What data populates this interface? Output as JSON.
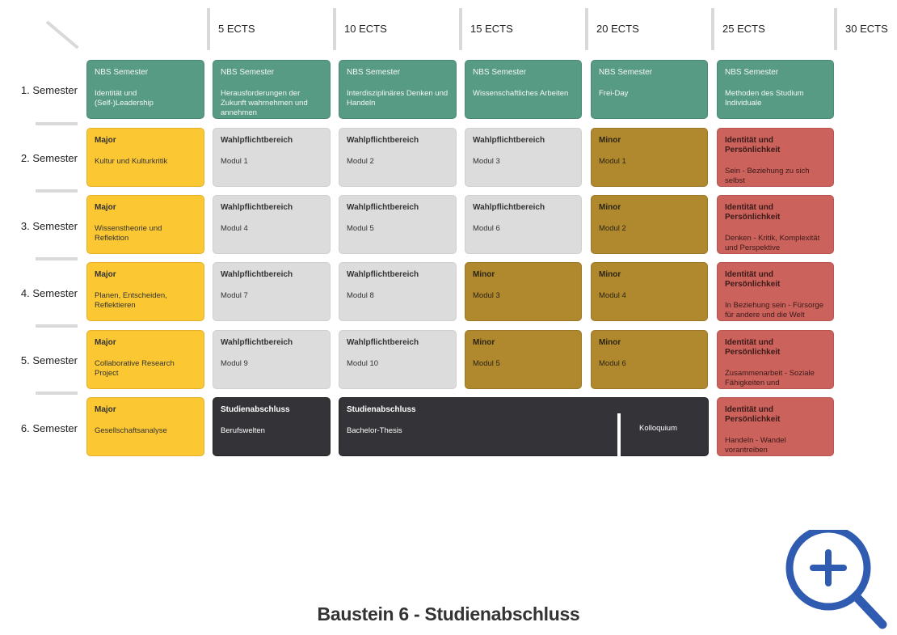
{
  "header": {
    "ects": [
      "5 ECTS",
      "10 ECTS",
      "15 ECTS",
      "20 ECTS",
      "25 ECTS",
      "30 ECTS"
    ]
  },
  "rows": [
    {
      "label": "1. Semester",
      "cells": [
        {
          "color": "green",
          "title": "NBS Semester",
          "sub": "Identität und (Self-)Leadership"
        },
        {
          "color": "green",
          "title": "NBS Semester",
          "sub": "Herausforderungen der Zukunft wahrnehmen und annehmen"
        },
        {
          "color": "green",
          "title": "NBS Semester",
          "sub": "Interdisziplinäres Denken und Handeln"
        },
        {
          "color": "green",
          "title": "NBS Semester",
          "sub": "Wissenschaftliches Arbeiten"
        },
        {
          "color": "green",
          "title": "NBS Semester",
          "sub": "Frei-Day"
        },
        {
          "color": "green",
          "title": "NBS Semester",
          "sub": "Methoden des Studium Individuale"
        }
      ]
    },
    {
      "label": "2. Semester",
      "cells": [
        {
          "color": "yellow",
          "title": "Major",
          "sub": "Kultur und Kulturkritik"
        },
        {
          "color": "grey",
          "title": "Wahlpflichtbereich",
          "sub": "Modul 1"
        },
        {
          "color": "grey",
          "title": "Wahlpflichtbereich",
          "sub": "Modul 2"
        },
        {
          "color": "grey",
          "title": "Wahlpflichtbereich",
          "sub": "Modul 3"
        },
        {
          "color": "brown",
          "title": "Minor",
          "sub": "Modul 1"
        },
        {
          "color": "red",
          "title": "Identität und Persönlichkeit",
          "sub": "Sein - Beziehung zu sich selbst"
        }
      ]
    },
    {
      "label": "3. Semester",
      "cells": [
        {
          "color": "yellow",
          "title": "Major",
          "sub": "Wissenstheorie und Reflektion"
        },
        {
          "color": "grey",
          "title": "Wahlpflichtbereich",
          "sub": "Modul 4"
        },
        {
          "color": "grey",
          "title": "Wahlpflichtbereich",
          "sub": "Modul 5"
        },
        {
          "color": "grey",
          "title": "Wahlpflichtbereich",
          "sub": "Modul 6"
        },
        {
          "color": "brown",
          "title": "Minor",
          "sub": "Modul 2"
        },
        {
          "color": "red",
          "title": "Identität und Persönlichkeit",
          "sub": "Denken - Kritik, Komplexität und Perspektive"
        }
      ]
    },
    {
      "label": "4. Semester",
      "cells": [
        {
          "color": "yellow",
          "title": "Major",
          "sub": "Planen, Entscheiden, Reflektieren"
        },
        {
          "color": "grey",
          "title": "Wahlpflichtbereich",
          "sub": "Modul 7"
        },
        {
          "color": "grey",
          "title": "Wahlpflichtbereich",
          "sub": "Modul 8"
        },
        {
          "color": "brown",
          "title": "Minor",
          "sub": "Modul 3"
        },
        {
          "color": "brown",
          "title": "Minor",
          "sub": "Modul 4"
        },
        {
          "color": "red",
          "title": "Identität und Persönlichkeit",
          "sub": "In Beziehung sein - Fürsorge für andere und die Welt"
        }
      ]
    },
    {
      "label": "5. Semester",
      "cells": [
        {
          "color": "yellow",
          "title": "Major",
          "sub": "Collaborative Research Project"
        },
        {
          "color": "grey",
          "title": "Wahlpflichtbereich",
          "sub": "Modul 9"
        },
        {
          "color": "grey",
          "title": "Wahlpflichtbereich",
          "sub": "Modul 10"
        },
        {
          "color": "brown",
          "title": "Minor",
          "sub": "Modul 5"
        },
        {
          "color": "brown",
          "title": "Minor",
          "sub": "Modul 6"
        },
        {
          "color": "red",
          "title": "Identität und Persönlichkeit",
          "sub": "Zusammenarbeit - Soziale Fähigkeiten und Kollaboration"
        }
      ]
    },
    {
      "label": "6. Semester",
      "cells": [
        {
          "color": "yellow",
          "title": "Major",
          "sub": "Gesellschaftsanalyse"
        },
        {
          "color": "dark",
          "title": "Studienabschluss",
          "sub": "Berufswelten"
        },
        {
          "color": "dark",
          "title": "Studienabschluss",
          "sub": "Bachelor-Thesis",
          "extra": "Kolloquium"
        },
        {
          "color": "red",
          "title": "Identität und Persönlichkeit",
          "sub": "Handeln - Wandel vorantreiben"
        }
      ]
    }
  ],
  "footer": {
    "title": "Baustein 6 - Studienabschluss"
  },
  "zoom": {
    "icon": "zoom-in-icon",
    "color": "#2f5bb0"
  }
}
